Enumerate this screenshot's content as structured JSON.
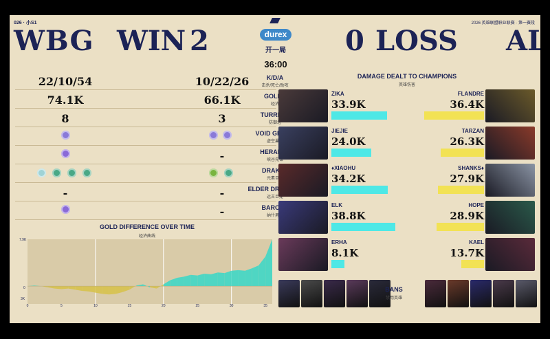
{
  "top": {
    "event_tag": "026 · 小S1",
    "league_text": "2026 英雄联盟职业联赛 · 第一赛段"
  },
  "header": {
    "left_team": "WBG",
    "win_label": "WIN",
    "left_score": "2",
    "right_score": "0",
    "loss_label": "LOSS",
    "right_team": "AL",
    "sponsor": "durex",
    "game_label": "开一局",
    "time": "36:00"
  },
  "stats": [
    {
      "label": "K/D/A",
      "sub": "击杀/死亡/助攻",
      "left": "22/10/54",
      "right": "10/22/26"
    },
    {
      "label": "GOLDS",
      "sub": "经济",
      "left": "74.1K",
      "right": "66.1K"
    },
    {
      "label": "TURRETS",
      "sub": "防御塔",
      "left": "8",
      "right": "3"
    },
    {
      "label": "VOID GRUBS",
      "sub": "虚空巢虫",
      "left": "",
      "right": ""
    },
    {
      "label": "HERALDS",
      "sub": "峡谷先锋",
      "left": "",
      "right": "-"
    },
    {
      "label": "DRAKES",
      "sub": "元素巨龙",
      "left": "",
      "right": ""
    },
    {
      "label": "ELDER DRAGONS",
      "sub": "远古巨龙",
      "left": "-",
      "right": "-"
    },
    {
      "label": "BARONS",
      "sub": "纳什男爵",
      "left": "",
      "right": "-"
    }
  ],
  "icons": {
    "void": "void-grub-icon",
    "herald": "herald-icon",
    "drake": "drake-icon",
    "baron": "baron-icon",
    "drake_colors_left": [
      "#9fd3d6",
      "#4aa886",
      "#4aa886",
      "#4aa886"
    ],
    "drake_colors_right": [
      "#7ab43f",
      "#4aa886"
    ]
  },
  "gold_chart": {
    "title": "GOLD DIFFERENCE OVER TIME",
    "sub": "经济曲线",
    "y_top": "7.9K",
    "y_zero": "0",
    "y_bottom": "3K",
    "x_ticks": [
      "0",
      "5",
      "10",
      "15",
      "20",
      "25",
      "30",
      "35"
    ]
  },
  "chart_data": {
    "type": "area",
    "x": [
      0,
      1,
      2,
      3,
      4,
      5,
      6,
      7,
      8,
      9,
      10,
      11,
      12,
      13,
      14,
      15,
      16,
      17,
      18,
      19,
      20,
      21,
      22,
      23,
      24,
      25,
      26,
      27,
      28,
      29,
      30,
      31,
      32,
      33,
      34,
      35,
      36
    ],
    "values": [
      0,
      0.1,
      0,
      -0.2,
      -0.4,
      -0.5,
      -0.4,
      -0.6,
      -0.8,
      -0.9,
      -1.1,
      -1.3,
      -1.4,
      -1.3,
      -1.0,
      -0.6,
      0.1,
      0.3,
      -0.2,
      -0.4,
      0.3,
      1.0,
      1.4,
      1.6,
      1.9,
      1.8,
      2.1,
      2.0,
      2.3,
      2.2,
      2.6,
      2.7,
      2.6,
      3.0,
      3.5,
      5.0,
      7.9
    ],
    "ylim": [
      -3,
      7.9
    ],
    "xlabel": "",
    "ylabel": "",
    "positive_color": "#4fd6c3",
    "negative_color": "#d7c356"
  },
  "damage": {
    "title": "DAMAGE DEALT TO CHAMPIONS",
    "sub": "英雄伤害",
    "max": 40,
    "left_color": "#4ee8e6",
    "right_color": "#f2e254",
    "rows": [
      {
        "left_name": "ZIKA",
        "left_val": "33.9K",
        "left_num": 33.9,
        "right_name": "FLANDRE",
        "right_val": "36.4K",
        "right_num": 36.4,
        "left_img": "#4a3a3a",
        "right_img": "#6b5a2a"
      },
      {
        "left_name": "JIEJIE",
        "left_val": "24.0K",
        "left_num": 24.0,
        "right_name": "TARZAN",
        "right_val": "26.3K",
        "right_num": 26.3,
        "left_img": "#3a4060",
        "right_img": "#8a3a2a"
      },
      {
        "left_name": "♦XIAOHU",
        "left_val": "34.2K",
        "left_num": 34.2,
        "right_name": "SHANKS♦",
        "right_val": "27.9K",
        "right_num": 27.9,
        "left_img": "#5a2a2a",
        "right_img": "#8a94a4"
      },
      {
        "left_name": "ELK",
        "left_val": "38.8K",
        "left_num": 38.8,
        "right_name": "HOPE",
        "right_val": "28.9K",
        "right_num": 28.9,
        "left_img": "#3a3a7a",
        "right_img": "#2a5a4a"
      },
      {
        "left_name": "ERHA",
        "left_val": "8.1K",
        "left_num": 8.1,
        "right_name": "KAEL",
        "right_val": "13.7K",
        "right_num": 13.7,
        "left_img": "#6a3a5a",
        "right_img": "#5a2a3a"
      }
    ]
  },
  "bans": {
    "label": "BANS",
    "sub": "禁用英雄",
    "left": [
      "#3a3a5a",
      "#4a4a4a",
      "#3a2a4a",
      "#5a3a5a",
      "#2a2a3a"
    ],
    "right": [
      "#4a2a3a",
      "#6a3a2a",
      "#2a2a6a",
      "#4a3a4a",
      "#5a5a6a"
    ]
  }
}
